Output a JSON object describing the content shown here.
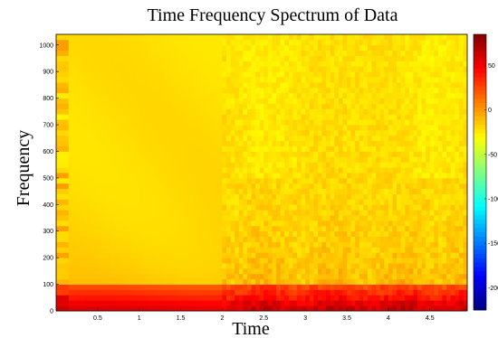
{
  "chart_data": {
    "type": "heatmap",
    "title": "Time Frequency Spectrum of Data",
    "xlabel": "Time",
    "ylabel": "Frequency",
    "x_ticks": [
      "0.5",
      "1",
      "1.5",
      "2",
      "2.5",
      "3",
      "3.5",
      "4",
      "4.5"
    ],
    "y_ticks": [
      "0",
      "100",
      "200",
      "300",
      "400",
      "500",
      "600",
      "700",
      "800",
      "900",
      "1000"
    ],
    "xlim": [
      0,
      4.95
    ],
    "ylim": [
      0,
      1040
    ],
    "colormap": "jet",
    "colorbar": {
      "ticks": [
        "50",
        "0",
        "-50",
        "-100",
        "-150",
        "-200"
      ],
      "range": [
        -225,
        85
      ]
    },
    "description_values": {
      "time_resolution": 0.05,
      "frequency_resolution": 20,
      "transition_time": 2.0,
      "low_freq_band_max": 100,
      "low_freq_band_level_db": 55,
      "background_level_db": -20
    },
    "grid": false
  }
}
